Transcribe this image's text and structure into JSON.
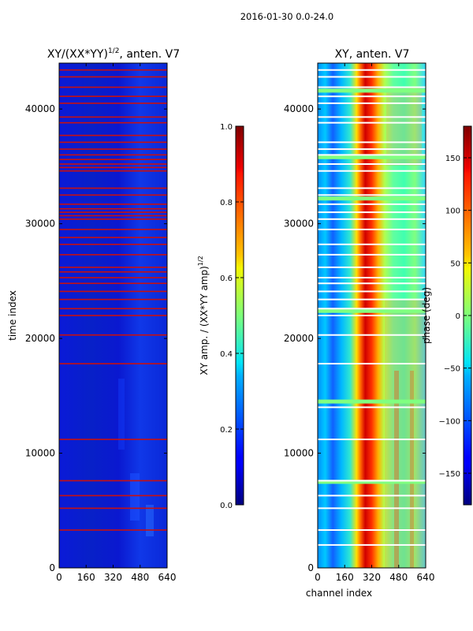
{
  "figure": {
    "suptitle": "2016-01-30 0.0-24.0"
  },
  "chart_data": [
    {
      "type": "heatmap",
      "title_text": "XY/(XX*YY)",
      "title_sup": "1/2",
      "title_suffix": ", anten. V7",
      "xlabel": "",
      "ylabel": "time index",
      "xlim": [
        0,
        640
      ],
      "ylim": [
        0,
        44000
      ],
      "xticks": [
        "0",
        "160",
        "320",
        "480",
        "640"
      ],
      "xtick_values": [
        0,
        160,
        320,
        480,
        640
      ],
      "yticks": [
        "0",
        "10000",
        "20000",
        "30000",
        "40000"
      ],
      "ytick_values": [
        0,
        10000,
        20000,
        30000,
        40000
      ],
      "colorbar": {
        "label_text": "XY amp. / (XX*YY amp)",
        "label_sup": "1/2",
        "range": [
          0,
          1
        ],
        "ticks": [
          "0.0",
          "0.2",
          "0.4",
          "0.6",
          "0.8",
          "1.0"
        ],
        "tick_values": [
          0.0,
          0.2,
          0.4,
          0.6,
          0.8,
          1.0
        ]
      },
      "flagged_rows": [
        3300,
        5200,
        6300,
        7600,
        11200,
        17800,
        20300,
        22000,
        22600,
        23400,
        24100,
        24800,
        25300,
        25800,
        26200,
        27300,
        28200,
        28800,
        29500,
        30400,
        30700,
        31000,
        31300,
        31700,
        32500,
        33100,
        34600,
        34900,
        35200,
        35600,
        36000,
        36500,
        37100,
        37700,
        38800,
        39300,
        40500,
        41100,
        41900,
        42800,
        43400
      ]
    },
    {
      "type": "heatmap",
      "title_text": "XY, anten. V7",
      "xlabel": "channel index",
      "ylabel": "",
      "xlim": [
        0,
        640
      ],
      "ylim": [
        0,
        44000
      ],
      "xticks": [
        "0",
        "160",
        "320",
        "480",
        "640"
      ],
      "xtick_values": [
        0,
        160,
        320,
        480,
        640
      ],
      "yticks": [
        "0",
        "10000",
        "20000",
        "30000",
        "40000"
      ],
      "ytick_values": [
        0,
        10000,
        20000,
        30000,
        40000
      ],
      "colorbar": {
        "label_text": "phase (deg)",
        "range": [
          -180,
          180
        ],
        "ticks": [
          "−150",
          "−100",
          "−50",
          "0",
          "50",
          "100",
          "150"
        ],
        "tick_values": [
          -150,
          -100,
          -50,
          0,
          50,
          100,
          150
        ]
      },
      "white_rows": [
        2000,
        3300,
        5200,
        6300,
        7600,
        11200,
        14000,
        17800,
        20300,
        22000,
        22600,
        23400,
        24100,
        24800,
        25300,
        26200,
        27300,
        28200,
        29500,
        30400,
        31000,
        31700,
        32500,
        33100,
        34600,
        35200,
        36000,
        36500,
        37100,
        38800,
        39300,
        40500,
        41100,
        41900,
        42800,
        43400
      ],
      "green_rows": [
        7500,
        14500,
        22400,
        32200,
        35800,
        41600
      ]
    }
  ]
}
